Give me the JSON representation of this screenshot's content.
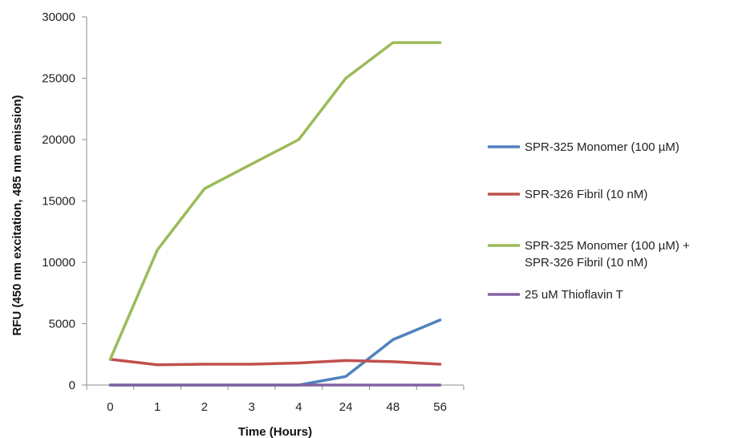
{
  "chart_data": {
    "type": "line",
    "title": "",
    "xlabel": "Time (Hours)",
    "ylabel": "RFU (450 nm excitation, 485 nm emission)",
    "categories": [
      "0",
      "1",
      "2",
      "3",
      "4",
      "24",
      "48",
      "56"
    ],
    "ylim": [
      0,
      30000
    ],
    "yticks": [
      "0",
      "5000",
      "10000",
      "15000",
      "20000",
      "25000",
      "30000"
    ],
    "grid": false,
    "legend_position": "right",
    "series": [
      {
        "name": "SPR-325 Monomer (100 µM)",
        "name_lines": [
          "SPR-325 Monomer (100 µM)"
        ],
        "color": "#4f81bd",
        "values": [
          0,
          0,
          0,
          0,
          0,
          700,
          3700,
          5300
        ]
      },
      {
        "name": "SPR-326 Fibril (10 nM)",
        "name_lines": [
          "SPR-326 Fibril (10 nM)"
        ],
        "color": "#c0504d",
        "values": [
          2100,
          1650,
          1700,
          1700,
          1800,
          2000,
          1900,
          1700
        ]
      },
      {
        "name": "SPR-325 Monomer (100 µM) + SPR-326 Fibril (10 nM)",
        "name_lines": [
          "SPR-325 Monomer (100 µM) +",
          "SPR-326 Fibril (10 nM)"
        ],
        "color": "#9bbb59",
        "values": [
          2100,
          11000,
          16000,
          18000,
          20000,
          25000,
          27900,
          27900
        ]
      },
      {
        "name": "25 uM Thioflavin T",
        "name_lines": [
          "25 uM Thioflavin T"
        ],
        "color": "#8064a2",
        "values": [
          0,
          0,
          0,
          0,
          0,
          0,
          0,
          0
        ]
      }
    ]
  }
}
